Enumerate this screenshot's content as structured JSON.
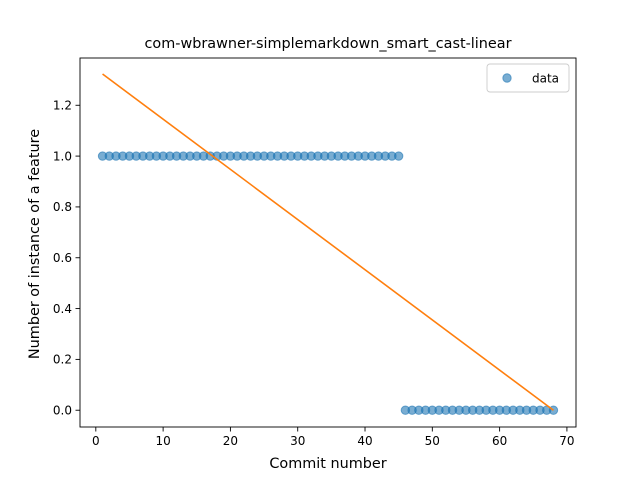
{
  "chart_data": {
    "type": "scatter",
    "title": "com-wbrawner-simplemarkdown_smart_cast-linear",
    "xlabel": "Commit number",
    "ylabel": "Number of instance of a feature",
    "xlim": [
      -2.35,
      71.35
    ],
    "ylim": [
      -0.066,
      1.386
    ],
    "xticks": [
      0,
      10,
      20,
      30,
      40,
      50,
      60,
      70
    ],
    "yticks": [
      0.0,
      0.2,
      0.4,
      0.6,
      0.8,
      1.0,
      1.2
    ],
    "ytick_labels": [
      "0.0",
      "0.2",
      "0.4",
      "0.6",
      "0.8",
      "1.0",
      "1.2"
    ],
    "grid": false,
    "legend_position": "top-right",
    "series": [
      {
        "name": "data",
        "kind": "scatter",
        "color": "#1f77b4",
        "alpha": 0.6,
        "x": [
          1,
          2,
          3,
          4,
          5,
          6,
          7,
          8,
          9,
          10,
          11,
          12,
          13,
          14,
          15,
          16,
          17,
          18,
          19,
          20,
          21,
          22,
          23,
          24,
          25,
          26,
          27,
          28,
          29,
          30,
          31,
          32,
          33,
          34,
          35,
          36,
          37,
          38,
          39,
          40,
          41,
          42,
          43,
          44,
          45,
          46,
          47,
          48,
          49,
          50,
          51,
          52,
          53,
          54,
          55,
          56,
          57,
          58,
          59,
          60,
          61,
          62,
          63,
          64,
          65,
          66,
          67,
          68
        ],
        "y": [
          1,
          1,
          1,
          1,
          1,
          1,
          1,
          1,
          1,
          1,
          1,
          1,
          1,
          1,
          1,
          1,
          1,
          1,
          1,
          1,
          1,
          1,
          1,
          1,
          1,
          1,
          1,
          1,
          1,
          1,
          1,
          1,
          1,
          1,
          1,
          1,
          1,
          1,
          1,
          1,
          1,
          1,
          1,
          1,
          1,
          0,
          0,
          0,
          0,
          0,
          0,
          0,
          0,
          0,
          0,
          0,
          0,
          0,
          0,
          0,
          0,
          0,
          0,
          0,
          0,
          0,
          0,
          0
        ]
      },
      {
        "kind": "line",
        "color": "#ff7f0e",
        "x": [
          1,
          68
        ],
        "y": [
          1.323,
          0.0
        ]
      }
    ]
  }
}
